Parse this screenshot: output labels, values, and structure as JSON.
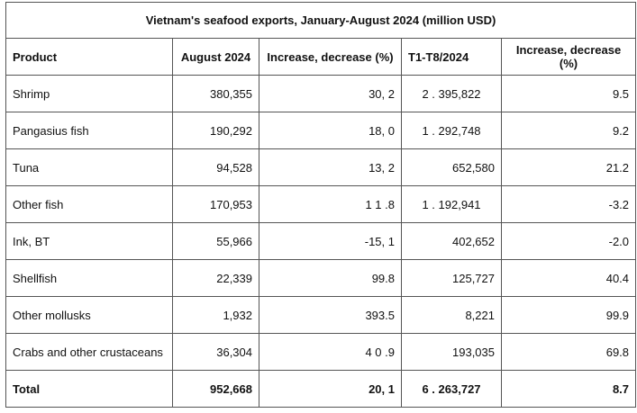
{
  "title": "Vietnam's seafood exports, January-August 2024 (million USD)",
  "headers": [
    "Product",
    "August 2024",
    "Increase, decrease (%)",
    "T1-T8/2024",
    "Increase, decrease (%)"
  ],
  "rows": [
    [
      "Shrimp",
      "380,355",
      "30, 2",
      "2 . 395,822",
      "9.5"
    ],
    [
      "Pangasius fish",
      "190,292",
      "18, 0",
      "1 . 292,748",
      "9.2"
    ],
    [
      "Tuna",
      "94,528",
      "13, 2",
      "652,580",
      "21.2"
    ],
    [
      "Other fish",
      "170,953",
      "1 1 .8",
      "1 . 192,941",
      "-3.2"
    ],
    [
      "Ink, BT",
      "55,966",
      "-15, 1",
      "402,652",
      "-2.0"
    ],
    [
      "Shellfish",
      "22,339",
      "99.8",
      "125,727",
      "40.4"
    ],
    [
      "Other mollusks",
      "1,932",
      "393.5",
      "8,221",
      "99.9"
    ],
    [
      "Crabs and other crustaceans",
      "36,304",
      "4 0 .9",
      "193,035",
      "69.8"
    ]
  ],
  "total": [
    "Total",
    "952,668",
    "20, 1",
    "6 . 263,727",
    "8.7"
  ]
}
